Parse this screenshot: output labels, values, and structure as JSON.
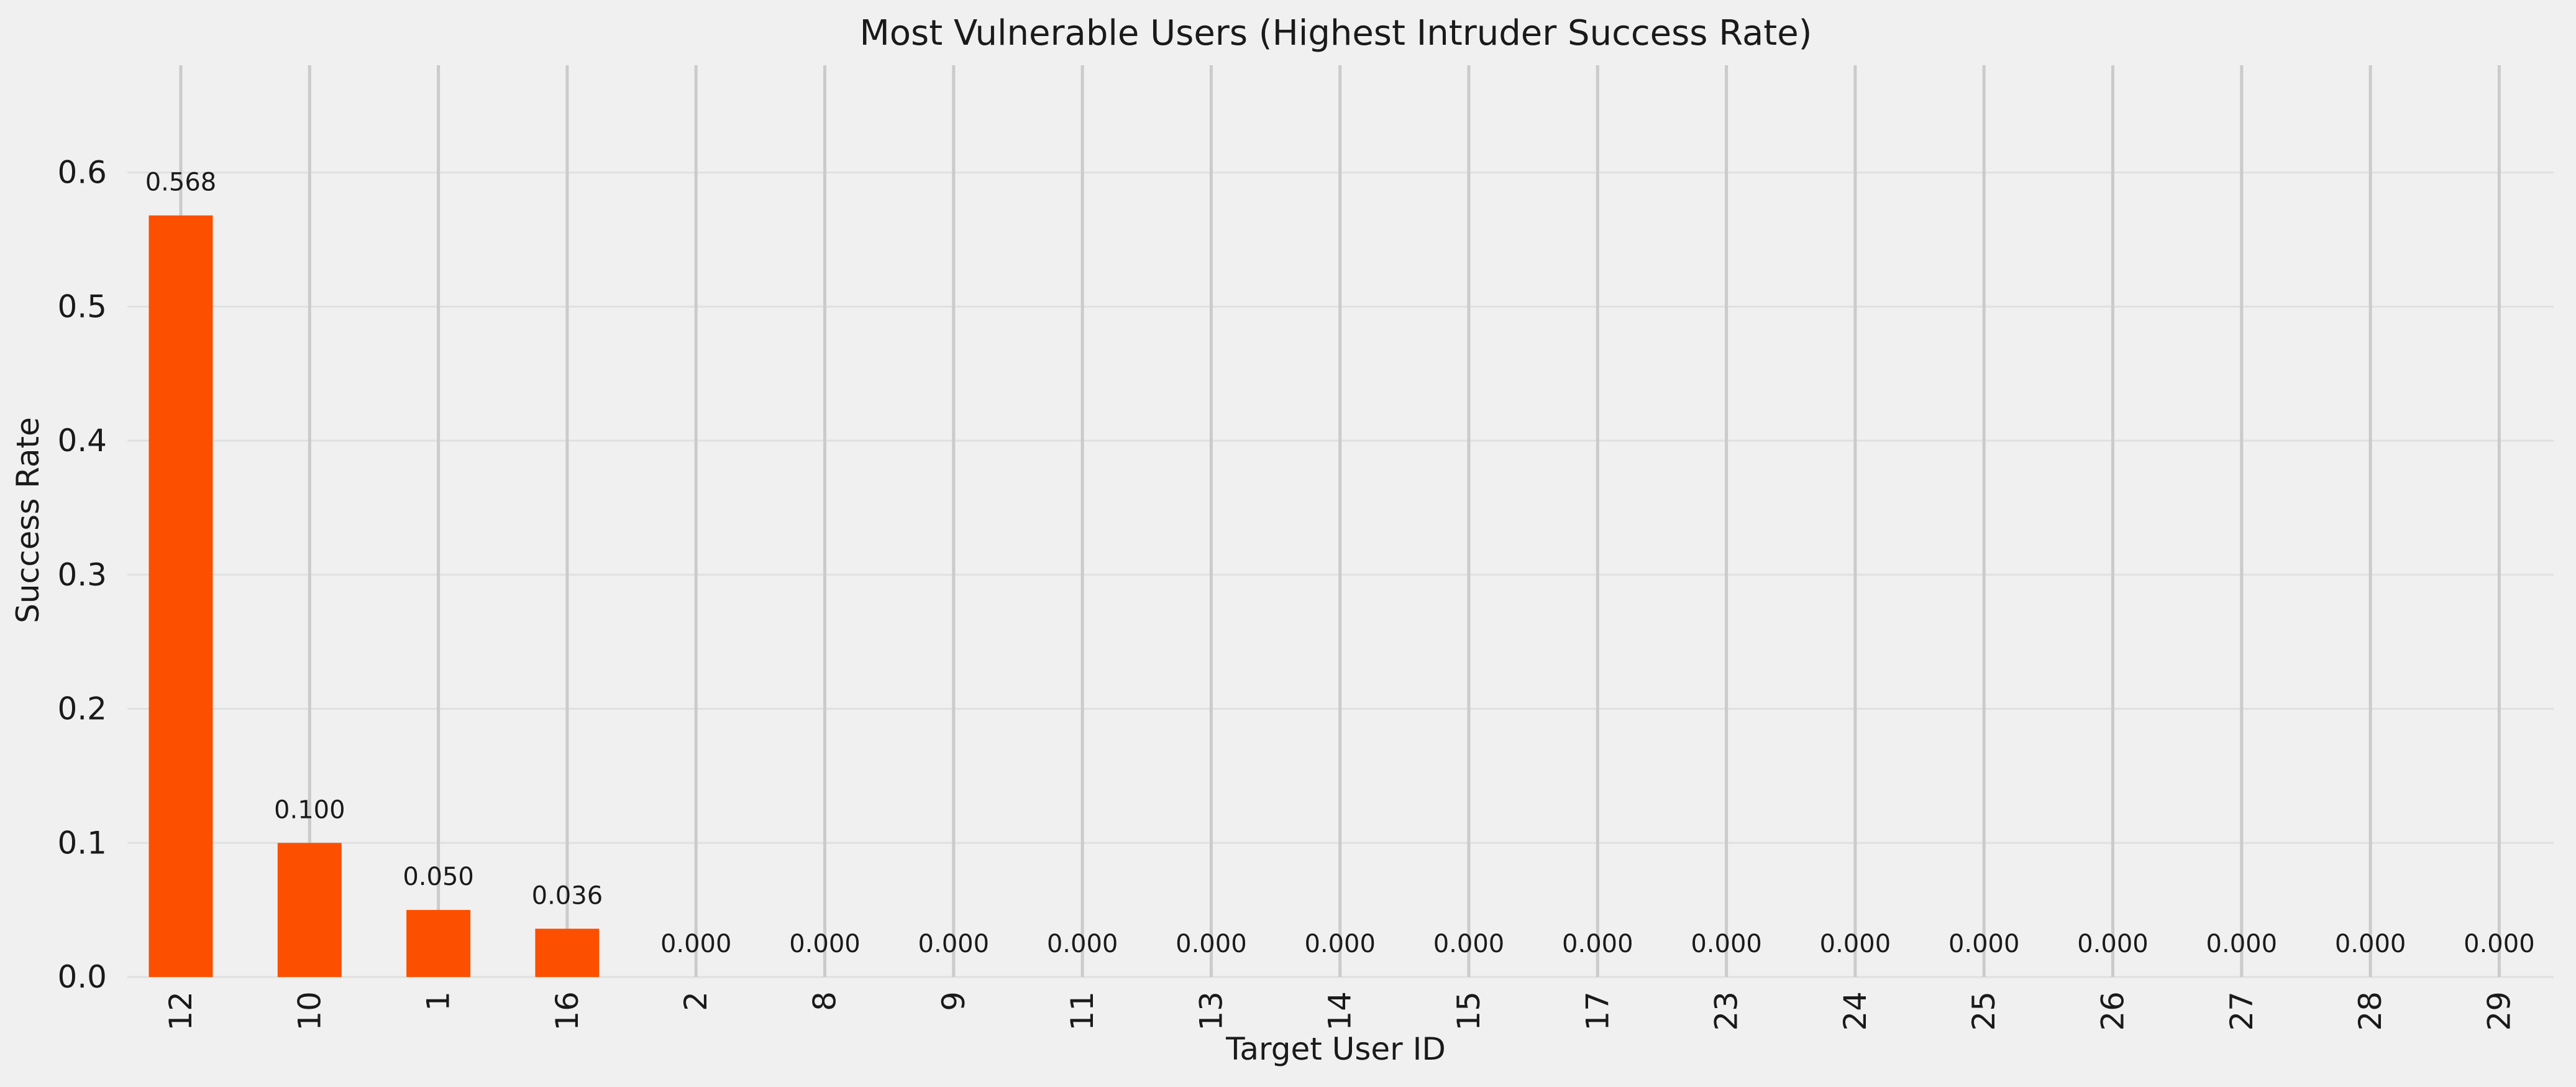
{
  "chart_data": {
    "type": "bar",
    "title": "Most Vulnerable Users (Highest Intruder Success Rate)",
    "xlabel": "Target User ID",
    "ylabel": "Success Rate",
    "categories": [
      "12",
      "10",
      "1",
      "16",
      "2",
      "8",
      "9",
      "11",
      "13",
      "14",
      "15",
      "17",
      "23",
      "24",
      "25",
      "26",
      "27",
      "28",
      "29"
    ],
    "values": [
      0.568,
      0.1,
      0.05,
      0.036,
      0.0,
      0.0,
      0.0,
      0.0,
      0.0,
      0.0,
      0.0,
      0.0,
      0.0,
      0.0,
      0.0,
      0.0,
      0.0,
      0.0,
      0.0
    ],
    "value_labels": [
      "0.568",
      "0.100",
      "0.050",
      "0.036",
      "0.000",
      "0.000",
      "0.000",
      "0.000",
      "0.000",
      "0.000",
      "0.000",
      "0.000",
      "0.000",
      "0.000",
      "0.000",
      "0.000",
      "0.000",
      "0.000",
      "0.000"
    ],
    "ylim": [
      0,
      0.68
    ],
    "yticks": [
      "0.0",
      "0.1",
      "0.2",
      "0.3",
      "0.4",
      "0.5",
      "0.6"
    ],
    "grid": true,
    "bar_color": "#fc4f00",
    "background": "#f0f0f0"
  }
}
